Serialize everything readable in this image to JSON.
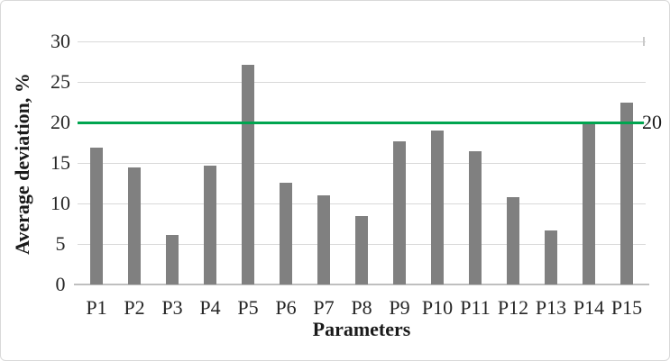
{
  "figure": {
    "background": "#ffffff",
    "border_color": "#d9d9d9"
  },
  "chart_data": {
    "type": "bar",
    "title": "",
    "xlabel": "Parameters",
    "ylabel": "Average deviation, %",
    "categories": [
      "P1",
      "P2",
      "P3",
      "P4",
      "P5",
      "P6",
      "P7",
      "P8",
      "P9",
      "P10",
      "P11",
      "P12",
      "P13",
      "P14",
      "P15"
    ],
    "values": [
      16.9,
      14.5,
      6.1,
      14.7,
      27.1,
      12.6,
      11.0,
      8.5,
      17.7,
      19.0,
      16.4,
      10.8,
      6.7,
      20.0,
      22.4
    ],
    "ylim": [
      0,
      30
    ],
    "yticks": [
      0,
      5,
      10,
      15,
      20,
      25,
      30
    ],
    "grid": true,
    "legend_position": "none",
    "bar_color": "#808080",
    "gridline_color": "#d9d9d9",
    "axis_line_color": "#bfbfbf",
    "threshold_line": {
      "value": 20,
      "label": "20",
      "color": "#00a550"
    }
  }
}
